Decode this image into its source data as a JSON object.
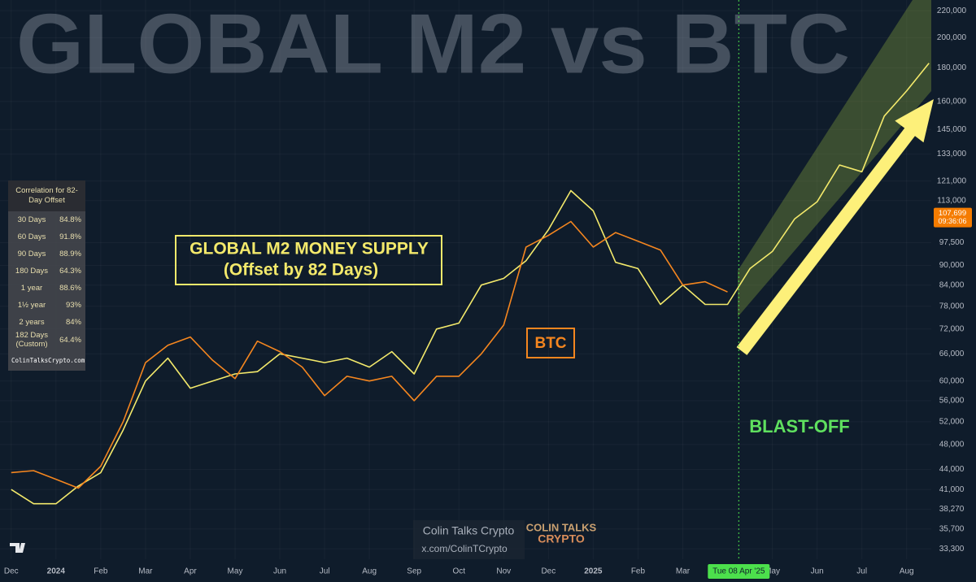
{
  "chart_data": {
    "type": "line",
    "title": "GLOBAL M2 vs BTC",
    "scale": "log",
    "grid": true,
    "x": [
      0,
      0.5,
      1,
      1.5,
      2,
      2.5,
      3,
      3.5,
      4,
      4.5,
      5,
      5.5,
      6,
      6.5,
      7,
      7.5,
      8,
      8.5,
      9,
      9.5,
      10,
      10.5,
      11,
      11.5,
      12,
      12.5,
      13,
      13.5,
      14,
      14.5,
      15,
      15.5,
      16,
      16.5,
      17,
      17.5,
      18,
      18.5,
      19,
      19.5,
      20,
      20.5
    ],
    "xlim": [
      -0.25,
      20.55
    ],
    "xticks": [
      {
        "value": 0,
        "label": "Dec"
      },
      {
        "value": 1,
        "label": "2024"
      },
      {
        "value": 2,
        "label": "Feb"
      },
      {
        "value": 3,
        "label": "Mar"
      },
      {
        "value": 4,
        "label": "Apr"
      },
      {
        "value": 5,
        "label": "May"
      },
      {
        "value": 6,
        "label": "Jun"
      },
      {
        "value": 7,
        "label": "Jul"
      },
      {
        "value": 8,
        "label": "Aug"
      },
      {
        "value": 9,
        "label": "Sep"
      },
      {
        "value": 10,
        "label": "Oct"
      },
      {
        "value": 11,
        "label": "Nov"
      },
      {
        "value": 12,
        "label": "Dec"
      },
      {
        "value": 13,
        "label": "2025"
      },
      {
        "value": 14,
        "label": "Feb"
      },
      {
        "value": 15,
        "label": "Mar"
      },
      {
        "value": 17,
        "label": "May"
      },
      {
        "value": 18,
        "label": "Jun"
      },
      {
        "value": 19,
        "label": "Jul"
      },
      {
        "value": 20,
        "label": "Aug"
      }
    ],
    "ylim": [
      32100,
      228400
    ],
    "yticks": [
      {
        "value": 33300,
        "label": "33,300"
      },
      {
        "value": 35700,
        "label": "35,700"
      },
      {
        "value": 38270,
        "label": "38,270"
      },
      {
        "value": 41000,
        "label": "41,000"
      },
      {
        "value": 44000,
        "label": "44,000"
      },
      {
        "value": 48000,
        "label": "48,000"
      },
      {
        "value": 52000,
        "label": "52,000"
      },
      {
        "value": 56000,
        "label": "56,000"
      },
      {
        "value": 60000,
        "label": "60,000"
      },
      {
        "value": 66000,
        "label": "66,000"
      },
      {
        "value": 72000,
        "label": "72,000"
      },
      {
        "value": 78000,
        "label": "78,000"
      },
      {
        "value": 84000,
        "label": "84,000"
      },
      {
        "value": 90000,
        "label": "90,000"
      },
      {
        "value": 97500,
        "label": "97,500"
      },
      {
        "value": 113000,
        "label": "113,000"
      },
      {
        "value": 121000,
        "label": "121,000"
      },
      {
        "value": 133000,
        "label": "133,000"
      },
      {
        "value": 145000,
        "label": "145,000"
      },
      {
        "value": 160000,
        "label": "160,000"
      },
      {
        "value": 180000,
        "label": "180,000"
      },
      {
        "value": 200000,
        "label": "200,000"
      },
      {
        "value": 220000,
        "label": "220,000"
      }
    ],
    "series": [
      {
        "name": "GLOBAL M2 MONEY SUPPLY",
        "note": "(Offset by 82 Days)",
        "color": "#f3e96b",
        "values": [
          41000,
          39000,
          39000,
          41500,
          43500,
          50500,
          60000,
          65000,
          58500,
          60000,
          61500,
          62000,
          66000,
          65000,
          64000,
          65000,
          63000,
          66500,
          61500,
          72000,
          73500,
          84000,
          86000,
          91500,
          102000,
          117000,
          109000,
          91000,
          89000,
          78500,
          84000,
          78500,
          78500,
          89000,
          94500,
          106000,
          112500,
          128000,
          125000,
          152000,
          166000,
          183000
        ]
      },
      {
        "name": "BTC",
        "color": "#f5861f",
        "values": [
          43500,
          43800,
          42500,
          41200,
          44500,
          52000,
          64000,
          68000,
          70000,
          64500,
          60500,
          69000,
          66500,
          63000,
          57000,
          61000,
          60000,
          61000,
          56000,
          61000,
          61000,
          66000,
          73000,
          96000,
          100000,
          105000,
          96000,
          101000,
          98000,
          95000,
          84000,
          85000,
          82000,
          null,
          null,
          null,
          null,
          null,
          null,
          null,
          null,
          null
        ]
      }
    ],
    "price_label": {
      "value": 107699,
      "label": "107,699",
      "countdown": "09:36:06"
    },
    "marker": {
      "x": 16.25,
      "label": "Tue 08 Apr '25"
    },
    "annotation": "BLAST-OFF",
    "watermark": {
      "name": "Colin Talks Crypto",
      "handle": "x.com/ColinTCrypto",
      "logo_top": "COLIN TALKS",
      "logo_bottom": "CRYPTO"
    },
    "correlation_table": {
      "title": "Correlation for 82-Day Offset",
      "rows": [
        [
          "30 Days",
          "84.8%"
        ],
        [
          "60 Days",
          "91.8%"
        ],
        [
          "90 Days",
          "88.9%"
        ],
        [
          "180 Days",
          "64.3%"
        ],
        [
          "1 year",
          "88.6%"
        ],
        [
          "1½ year",
          "93%"
        ],
        [
          "2 years",
          "84%"
        ],
        [
          "182 Days (Custom)",
          "64.4%"
        ]
      ],
      "footer": "ColinTalksCrypto.com"
    }
  }
}
